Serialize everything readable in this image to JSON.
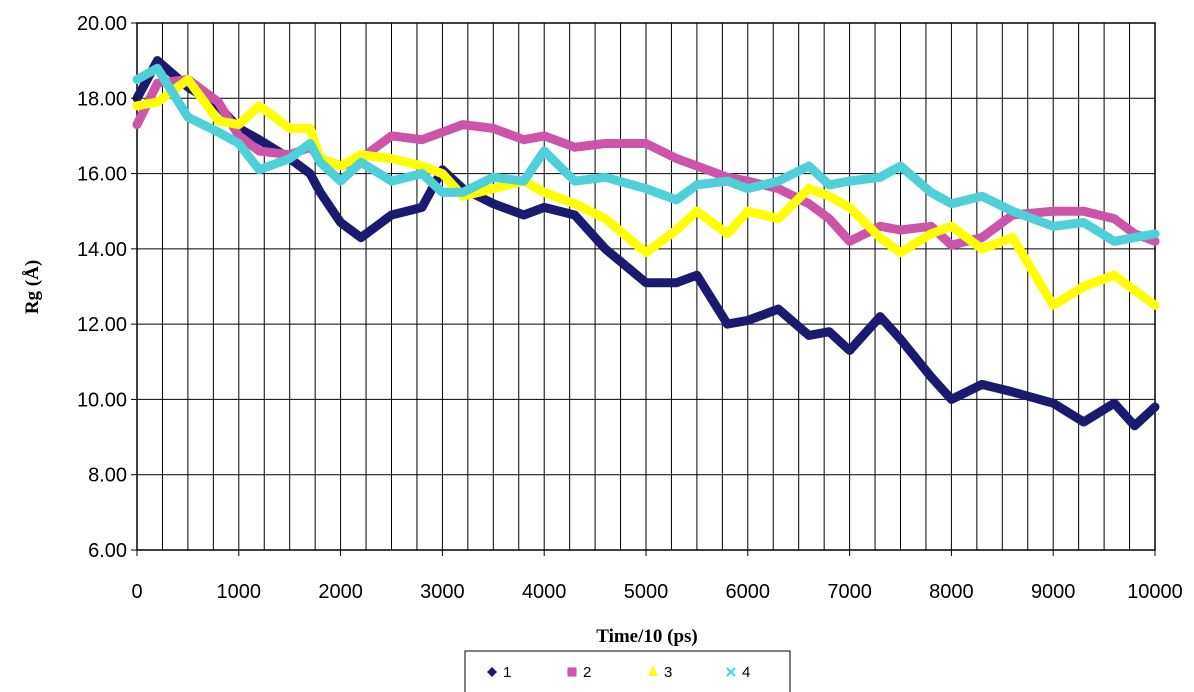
{
  "chart_data": {
    "type": "line",
    "title": "",
    "xlabel": "Time/10 (ps)",
    "ylabel": "Rg (Å)",
    "xlim": [
      0,
      10000
    ],
    "ylim": [
      6,
      20
    ],
    "x_ticks": [
      "0",
      "1000",
      "2000",
      "3000",
      "4000",
      "5000",
      "6000",
      "7000",
      "8000",
      "9000",
      "10000"
    ],
    "y_ticks": [
      "6.00",
      "8.00",
      "10.00",
      "12.00",
      "14.00",
      "16.00",
      "18.00",
      "20.00"
    ],
    "grid": true,
    "legend_position": "bottom",
    "x": [
      0,
      200,
      500,
      800,
      1000,
      1200,
      1500,
      1700,
      1800,
      2000,
      2200,
      2500,
      2800,
      3000,
      3200,
      3500,
      3800,
      4000,
      4300,
      4600,
      5000,
      5300,
      5500,
      5800,
      6000,
      6300,
      6600,
      6800,
      7000,
      7300,
      7500,
      7800,
      8000,
      8300,
      8600,
      9000,
      9300,
      9600,
      9800,
      10000
    ],
    "series": [
      {
        "name": "1",
        "color": "#1a1a6e",
        "marker": "diamond",
        "values": [
          18.0,
          19.0,
          18.3,
          17.8,
          17.2,
          16.9,
          16.4,
          16.0,
          15.5,
          14.7,
          14.3,
          14.9,
          15.1,
          16.1,
          15.6,
          15.2,
          14.9,
          15.1,
          14.9,
          14.0,
          13.1,
          13.1,
          13.3,
          12.0,
          12.1,
          12.4,
          11.7,
          11.8,
          11.3,
          12.2,
          11.6,
          10.6,
          10.0,
          10.4,
          10.2,
          9.9,
          9.4,
          9.9,
          9.3,
          9.8
        ]
      },
      {
        "name": "2",
        "color": "#cc55aa",
        "marker": "square",
        "values": [
          17.3,
          18.4,
          18.5,
          17.9,
          17.0,
          16.6,
          16.5,
          16.7,
          16.4,
          16.2,
          16.4,
          17.0,
          16.9,
          17.1,
          17.3,
          17.2,
          16.9,
          17.0,
          16.7,
          16.8,
          16.8,
          16.4,
          16.2,
          15.9,
          15.8,
          15.6,
          15.2,
          14.8,
          14.2,
          14.6,
          14.5,
          14.6,
          14.1,
          14.3,
          14.9,
          15.0,
          15.0,
          14.8,
          14.4,
          14.2
        ]
      },
      {
        "name": "3",
        "color": "#ffff00",
        "marker": "triangle",
        "values": [
          17.8,
          17.9,
          18.5,
          17.4,
          17.3,
          17.8,
          17.2,
          17.2,
          16.4,
          16.2,
          16.5,
          16.4,
          16.2,
          16.0,
          15.4,
          15.6,
          15.8,
          15.5,
          15.2,
          14.8,
          13.9,
          14.5,
          15.0,
          14.4,
          15.0,
          14.8,
          15.6,
          15.4,
          15.1,
          14.3,
          13.9,
          14.4,
          14.6,
          14.0,
          14.3,
          12.5,
          13.0,
          13.3,
          12.9,
          12.5
        ]
      },
      {
        "name": "4",
        "color": "#4fd0d8",
        "marker": "x",
        "values": [
          18.5,
          18.8,
          17.5,
          17.1,
          16.8,
          16.1,
          16.4,
          16.8,
          16.3,
          15.8,
          16.3,
          15.8,
          16.0,
          15.5,
          15.5,
          15.9,
          15.8,
          16.6,
          15.8,
          15.9,
          15.6,
          15.3,
          15.7,
          15.8,
          15.6,
          15.8,
          16.2,
          15.7,
          15.8,
          15.9,
          16.2,
          15.5,
          15.2,
          15.4,
          15.0,
          14.6,
          14.7,
          14.2,
          14.3,
          14.4
        ]
      }
    ]
  }
}
